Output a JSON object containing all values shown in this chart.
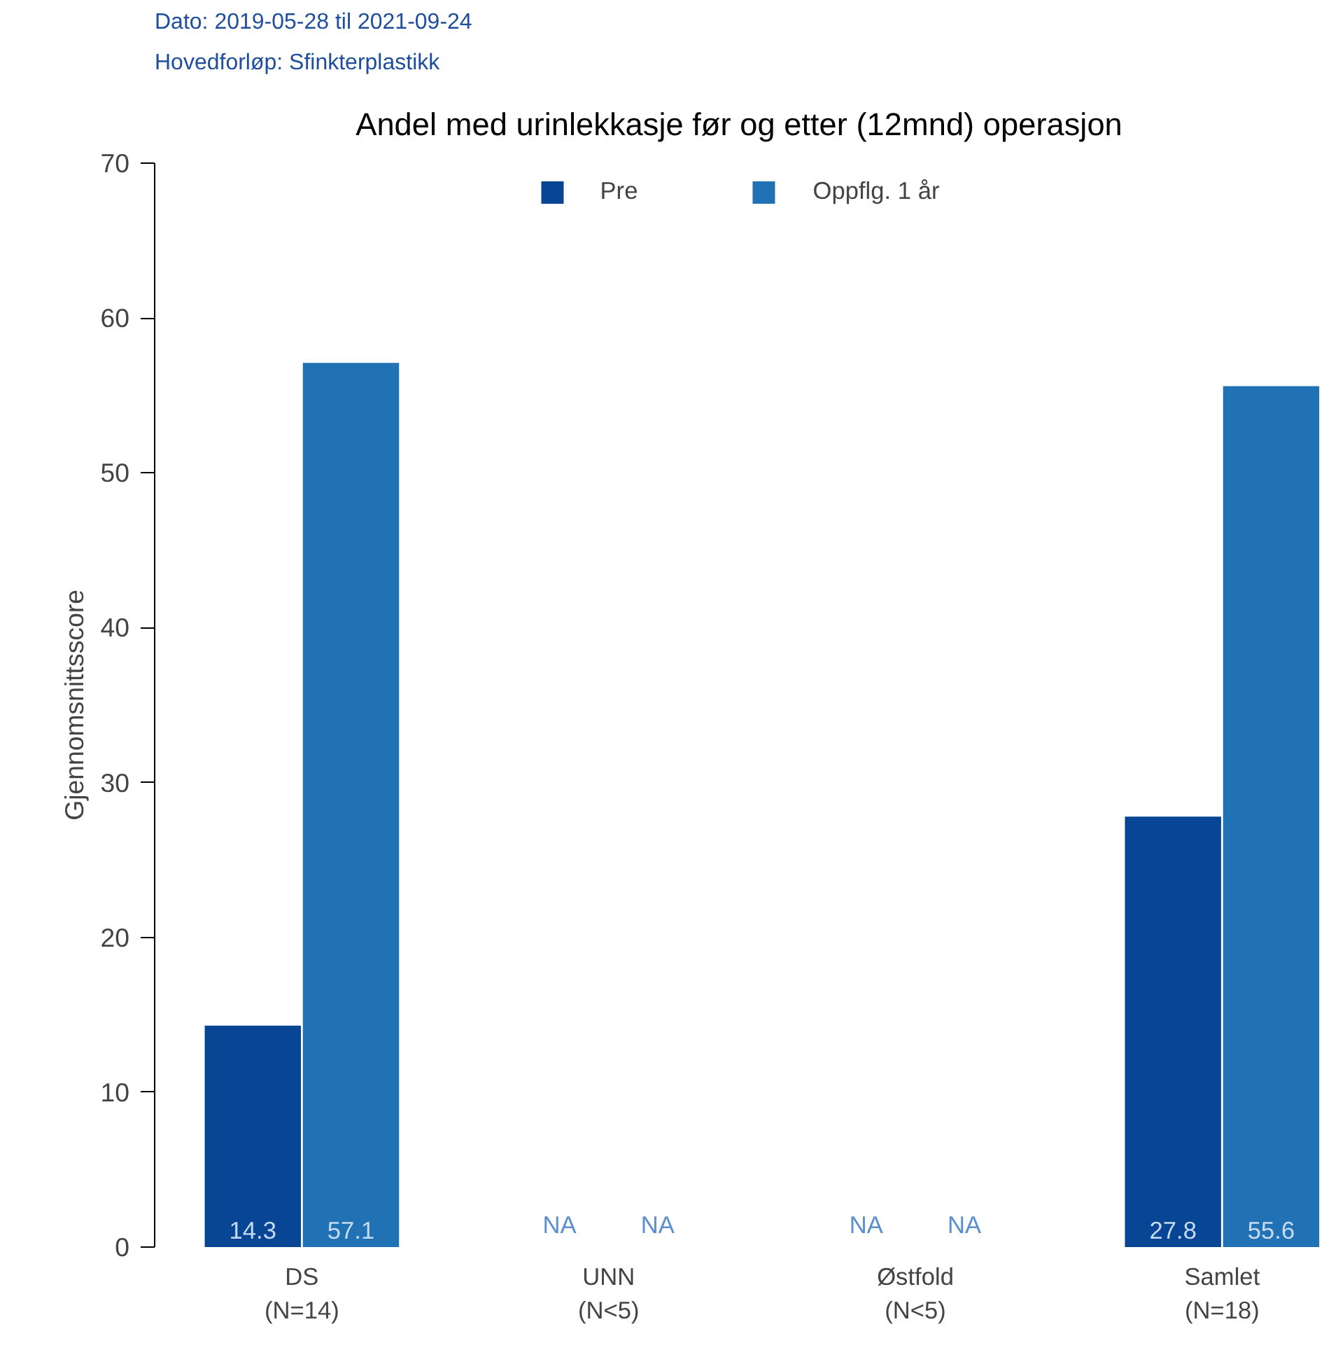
{
  "chart_data": {
    "type": "bar",
    "title": "Andel med urinlekkasje før og etter (12mnd) operasjon",
    "annotations": [
      "Dato: 2019-05-28 til 2021-09-24",
      "Hovedforløp: Sfinkterplastikk"
    ],
    "ylabel": "Gjennomsnittsscore",
    "categories": [
      "DS\n(N=14)",
      "UNN\n(N<5)",
      "Østfold\n(N<5)",
      "Samlet\n(N=18)"
    ],
    "series": [
      {
        "name": "Pre",
        "color": "#084594",
        "values": [
          14.3,
          null,
          null,
          27.8
        ],
        "value_labels": [
          "14.3",
          "NA",
          "NA",
          "27.8"
        ]
      },
      {
        "name": "Oppflg. 1 år",
        "color": "#2171b5",
        "values": [
          57.1,
          null,
          null,
          55.6
        ],
        "value_labels": [
          "57.1",
          "NA",
          "NA",
          "55.6"
        ]
      }
    ],
    "ylim": [
      0,
      70
    ],
    "yticks": [
      0,
      10,
      20,
      30,
      40,
      50,
      60,
      70
    ],
    "grid": false,
    "legend": "top"
  }
}
